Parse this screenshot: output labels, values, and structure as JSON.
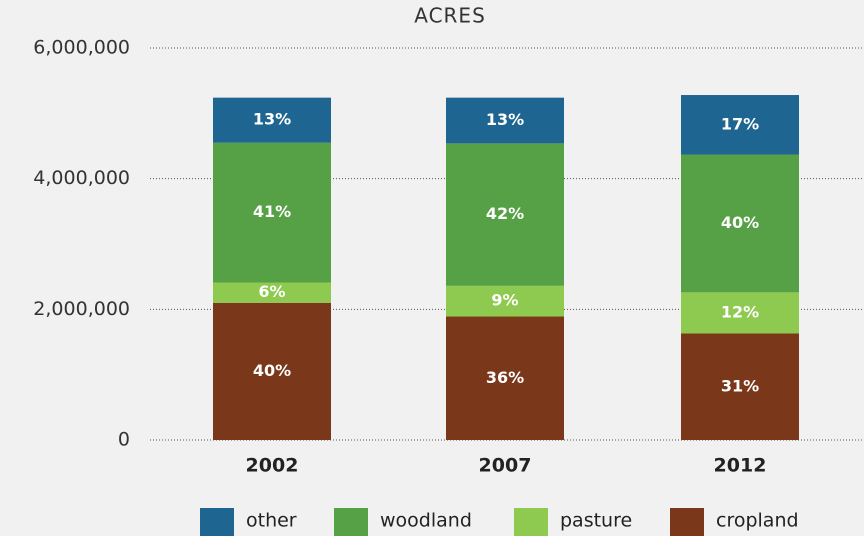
{
  "chart_data": {
    "type": "stacked_bar",
    "title": "ACRES",
    "categories": [
      "2002",
      "2007",
      "2012"
    ],
    "series": [
      {
        "name": "cropland",
        "color": "#7a3719",
        "values": [
          2100000,
          1890000,
          1630000
        ],
        "value_labels": [
          "40%",
          "36%",
          "31%"
        ]
      },
      {
        "name": "pasture",
        "color": "#8ec950",
        "values": [
          310000,
          470000,
          630000
        ],
        "value_labels": [
          "6%",
          "9%",
          "12%"
        ]
      },
      {
        "name": "woodland",
        "color": "#56a045",
        "values": [
          2140000,
          2180000,
          2110000
        ],
        "value_labels": [
          "41%",
          "42%",
          "40%"
        ]
      },
      {
        "name": "other",
        "color": "#1f6591",
        "values": [
          690000,
          700000,
          910000
        ],
        "value_labels": [
          "13%",
          "13%",
          "17%"
        ]
      }
    ],
    "ylim": [
      0,
      6000000
    ],
    "yticks": [
      0,
      {
        "value": 2000000,
        "label": "2,000,000"
      },
      {
        "value": 4000000,
        "label": "4,000,000"
      },
      {
        "value": 6000000,
        "label": "6,000,000"
      }
    ],
    "grid": true
  }
}
